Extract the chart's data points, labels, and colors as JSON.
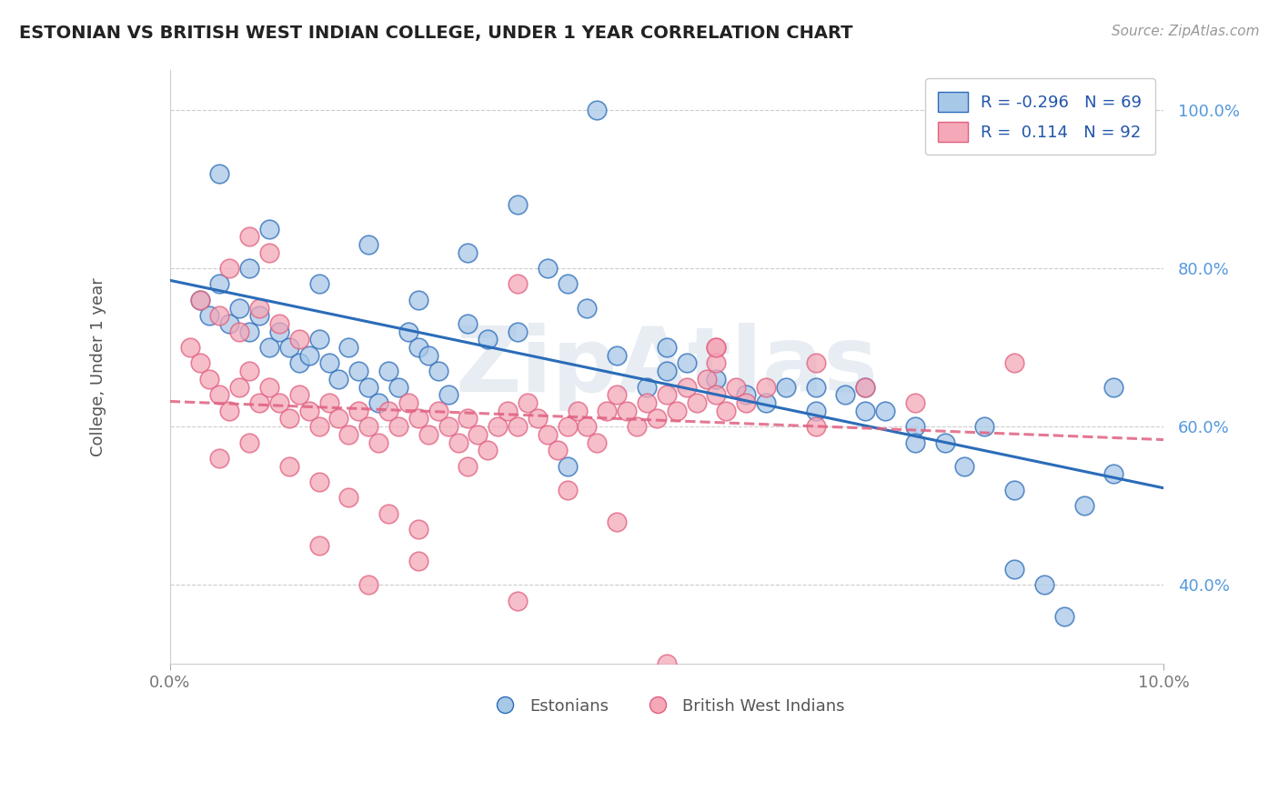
{
  "title": "ESTONIAN VS BRITISH WEST INDIAN COLLEGE, UNDER 1 YEAR CORRELATION CHART",
  "source": "Source: ZipAtlas.com",
  "ylabel": "College, Under 1 year",
  "x_range": [
    0.0,
    10.0
  ],
  "y_range": [
    30.0,
    105.0
  ],
  "blue_color": "#A8C8E8",
  "pink_color": "#F4A8B8",
  "blue_line_color": "#2B6CB8",
  "pink_line_color": "#E06080",
  "watermark": "ZipAtlas",
  "blue_scatter_x": [
    0.3,
    0.4,
    0.5,
    0.6,
    0.7,
    0.8,
    0.9,
    1.0,
    1.1,
    1.2,
    1.3,
    1.4,
    1.5,
    1.6,
    1.7,
    1.8,
    1.9,
    2.0,
    2.1,
    2.2,
    2.3,
    2.4,
    2.5,
    2.6,
    2.7,
    2.8,
    3.0,
    3.2,
    3.5,
    3.8,
    4.0,
    4.2,
    4.5,
    4.8,
    5.0,
    5.2,
    5.5,
    5.8,
    6.0,
    6.2,
    6.5,
    6.8,
    7.0,
    7.2,
    7.5,
    7.8,
    8.0,
    8.2,
    8.5,
    8.8,
    9.0,
    9.2,
    9.5,
    4.3,
    0.5,
    1.0,
    2.0,
    3.0,
    3.5,
    0.8,
    1.5,
    2.5,
    5.0,
    6.5,
    7.0,
    7.5,
    4.0,
    8.5,
    9.5
  ],
  "blue_scatter_y": [
    76,
    74,
    78,
    73,
    75,
    72,
    74,
    70,
    72,
    70,
    68,
    69,
    71,
    68,
    66,
    70,
    67,
    65,
    63,
    67,
    65,
    72,
    70,
    69,
    67,
    64,
    73,
    71,
    72,
    80,
    78,
    75,
    69,
    65,
    67,
    68,
    66,
    64,
    63,
    65,
    62,
    64,
    65,
    62,
    60,
    58,
    55,
    60,
    42,
    40,
    36,
    50,
    65,
    100,
    92,
    85,
    83,
    82,
    88,
    80,
    78,
    76,
    70,
    65,
    62,
    58,
    55,
    52,
    54
  ],
  "pink_scatter_x": [
    0.2,
    0.3,
    0.4,
    0.5,
    0.6,
    0.7,
    0.8,
    0.9,
    1.0,
    1.1,
    1.2,
    1.3,
    1.4,
    1.5,
    1.6,
    1.7,
    1.8,
    1.9,
    2.0,
    2.1,
    2.2,
    2.3,
    2.4,
    2.5,
    2.6,
    2.7,
    2.8,
    2.9,
    3.0,
    3.1,
    3.2,
    3.3,
    3.4,
    3.5,
    3.6,
    3.7,
    3.8,
    3.9,
    4.0,
    4.1,
    4.2,
    4.3,
    4.4,
    4.5,
    4.6,
    4.7,
    4.8,
    4.9,
    5.0,
    5.1,
    5.2,
    5.3,
    5.4,
    5.5,
    5.6,
    5.7,
    5.8,
    0.5,
    0.8,
    1.2,
    1.5,
    1.8,
    2.2,
    2.5,
    0.3,
    0.5,
    0.7,
    0.9,
    1.1,
    1.3,
    0.6,
    0.8,
    1.0,
    3.5,
    5.5,
    6.5,
    1.5,
    2.5,
    3.0,
    4.0,
    5.5,
    2.0,
    3.5,
    4.5,
    5.0,
    6.0,
    6.5,
    7.0,
    7.5,
    8.5,
    5.5
  ],
  "pink_scatter_y": [
    70,
    68,
    66,
    64,
    62,
    65,
    67,
    63,
    65,
    63,
    61,
    64,
    62,
    60,
    63,
    61,
    59,
    62,
    60,
    58,
    62,
    60,
    63,
    61,
    59,
    62,
    60,
    58,
    61,
    59,
    57,
    60,
    62,
    60,
    63,
    61,
    59,
    57,
    60,
    62,
    60,
    58,
    62,
    64,
    62,
    60,
    63,
    61,
    64,
    62,
    65,
    63,
    66,
    64,
    62,
    65,
    63,
    56,
    58,
    55,
    53,
    51,
    49,
    47,
    76,
    74,
    72,
    75,
    73,
    71,
    80,
    84,
    82,
    78,
    70,
    68,
    45,
    43,
    55,
    52,
    68,
    40,
    38,
    48,
    30,
    65,
    60,
    65,
    63,
    68,
    70
  ]
}
